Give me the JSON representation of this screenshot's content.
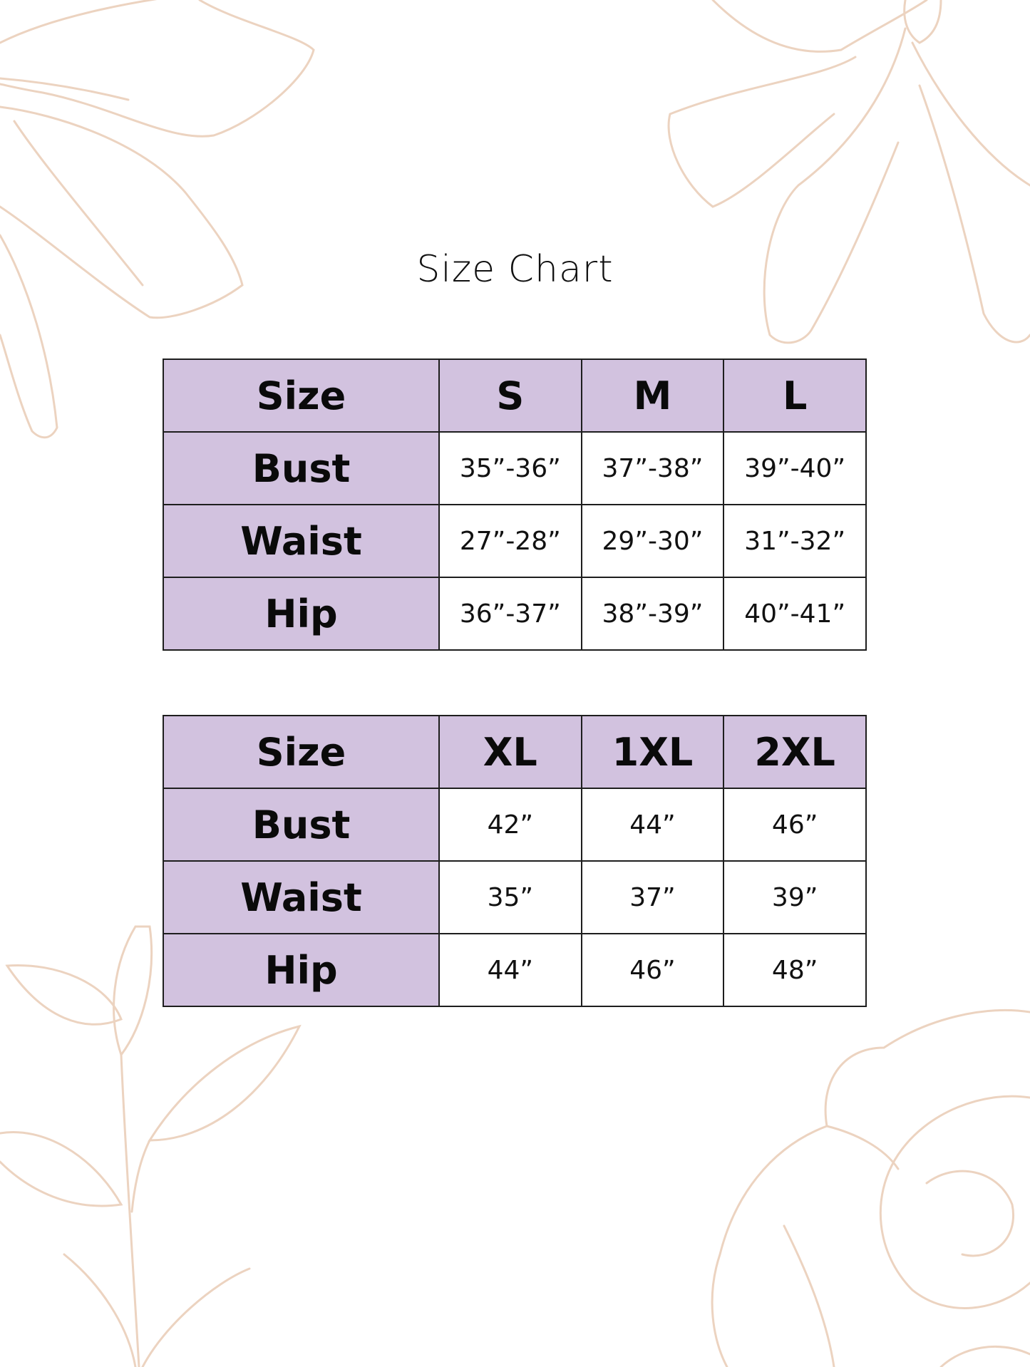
{
  "title": "Size Chart",
  "colors": {
    "header_fill": "#d2c2df",
    "border": "#1e1e1e",
    "floral_line": "#ecd3c0"
  },
  "tables": [
    {
      "header": [
        "Size",
        "S",
        "M",
        "L"
      ],
      "rows": [
        {
          "label": "Bust",
          "values": [
            "35”-36”",
            "37”-38”",
            "39”-40”"
          ]
        },
        {
          "label": "Waist",
          "values": [
            "27”-28”",
            "29”-30”",
            "31”-32”"
          ]
        },
        {
          "label": "Hip",
          "values": [
            "36”-37”",
            "38”-39”",
            "40”-41”"
          ]
        }
      ]
    },
    {
      "header": [
        "Size",
        "XL",
        "1XL",
        "2XL"
      ],
      "rows": [
        {
          "label": "Bust",
          "values": [
            "42”",
            "44”",
            "46”"
          ]
        },
        {
          "label": "Waist",
          "values": [
            "35”",
            "37”",
            "39”"
          ]
        },
        {
          "label": "Hip",
          "values": [
            "44”",
            "46”",
            "48”"
          ]
        }
      ]
    }
  ]
}
